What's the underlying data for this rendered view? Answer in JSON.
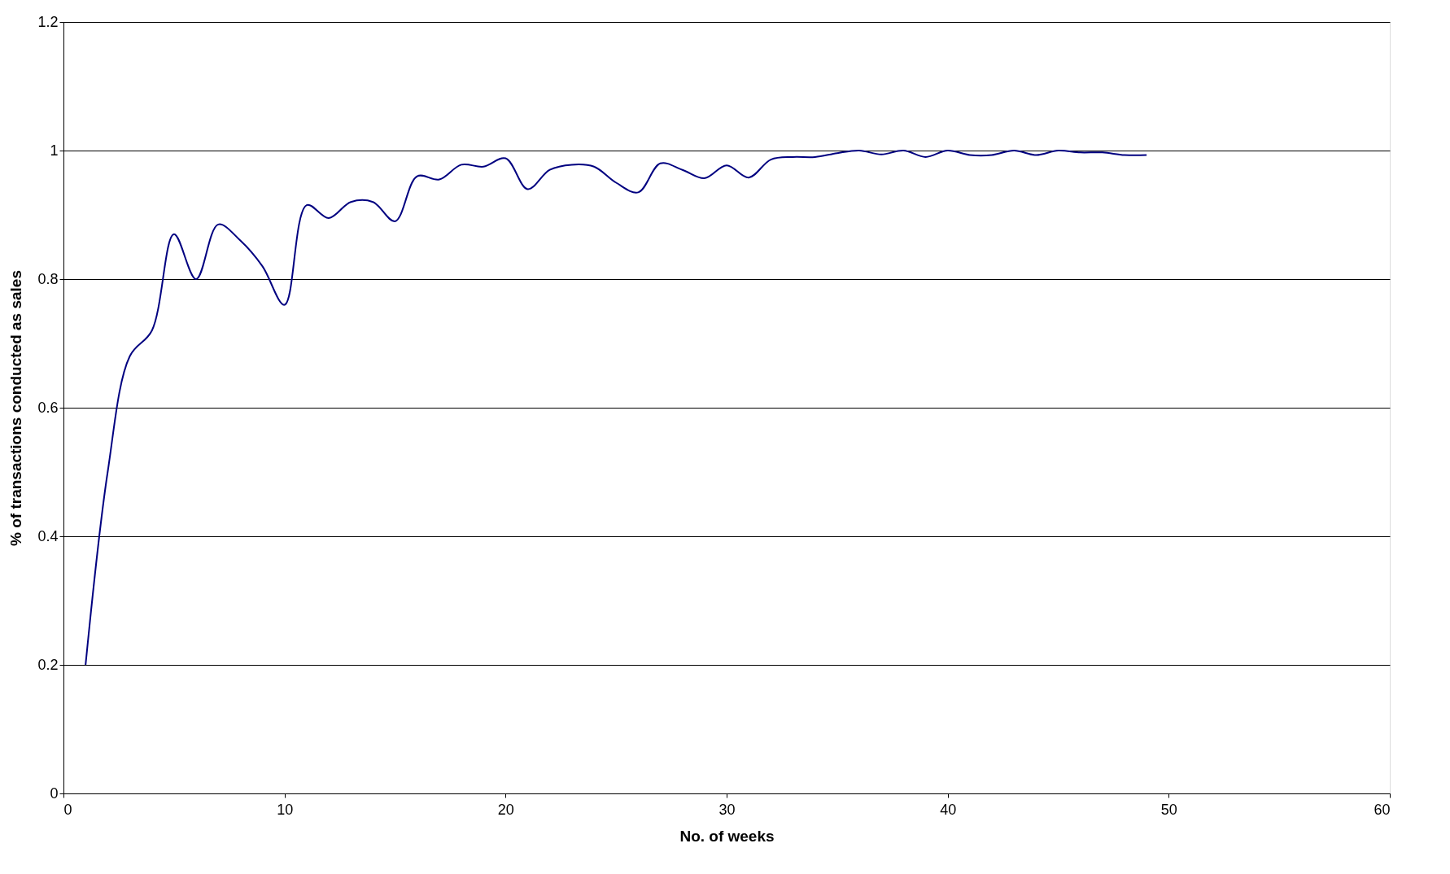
{
  "chart_data": {
    "type": "line",
    "xlabel": "No. of weeks",
    "ylabel": "% of transactions conducted as sales",
    "x": [
      1,
      2,
      3,
      4,
      5,
      6,
      7,
      8,
      9,
      10,
      11,
      12,
      13,
      14,
      15,
      16,
      17,
      18,
      19,
      20,
      21,
      22,
      23,
      24,
      25,
      26,
      27,
      28,
      29,
      30,
      31,
      32,
      33,
      34,
      35,
      36,
      37,
      38,
      39,
      40,
      41,
      42,
      43,
      44,
      45,
      46,
      47,
      48,
      49
    ],
    "series": [
      {
        "color": "#000080",
        "values": [
          0.2,
          0.5,
          0.68,
          0.72,
          0.87,
          0.8,
          0.885,
          0.86,
          0.82,
          0.76,
          0.915,
          0.895,
          0.92,
          0.92,
          0.89,
          0.96,
          0.955,
          0.978,
          0.975,
          0.988,
          0.94,
          0.97,
          0.978,
          0.975,
          0.95,
          0.935,
          0.98,
          0.97,
          0.957,
          0.977,
          0.958,
          0.986,
          0.99,
          0.99,
          0.996,
          1.0,
          0.994,
          1.0,
          0.99,
          1.0,
          0.993,
          0.993,
          1.0,
          0.993,
          1.0,
          0.997,
          0.997,
          0.993,
          0.993
        ]
      }
    ],
    "xlim": [
      0,
      60
    ],
    "xticks": [
      0,
      10,
      20,
      30,
      40,
      50,
      60
    ],
    "ylim": [
      0,
      1.2
    ],
    "yticks": [
      0,
      0.2,
      0.4,
      0.6,
      0.8,
      1,
      1.2
    ],
    "grid": "y",
    "legend": false,
    "marker": "none",
    "line_style": "solid"
  }
}
